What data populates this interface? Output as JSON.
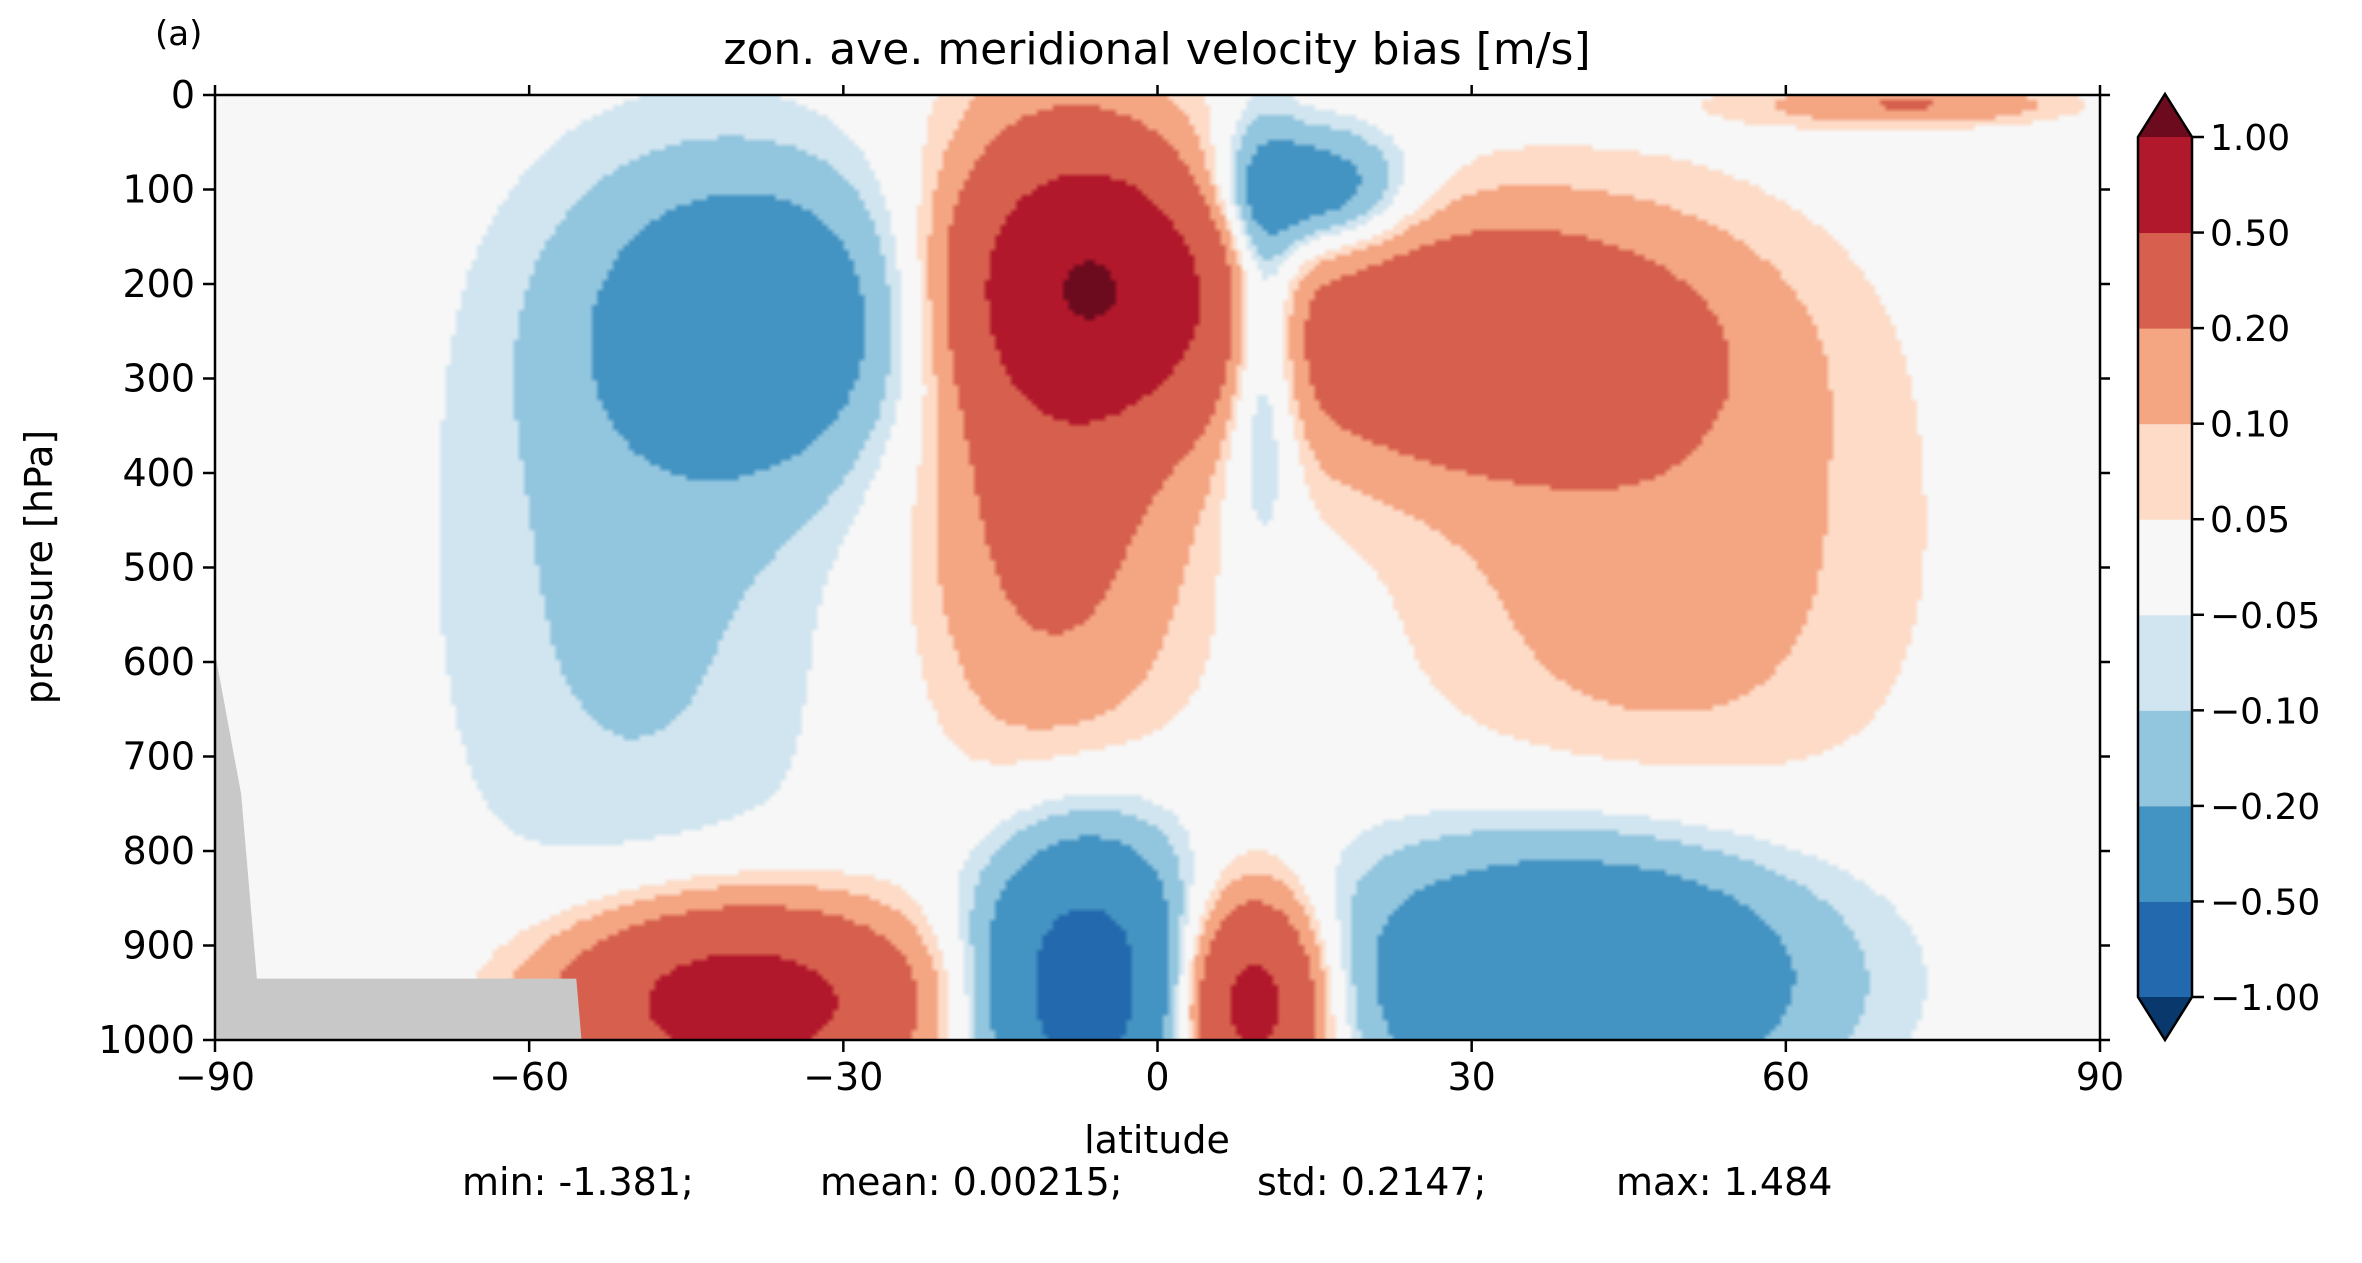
{
  "chart_data": {
    "type": "heatmap",
    "panel_label": "(a)",
    "title": "zon. ave. meridional velocity bias [m/s]",
    "xlabel": "latitude",
    "ylabel": "pressure [hPa]",
    "xlim": [
      -90,
      90
    ],
    "ylim": [
      1000,
      0
    ],
    "y_inverted": true,
    "x_ticks": [
      -90,
      -60,
      -30,
      0,
      30,
      60,
      90
    ],
    "x_tick_labels": [
      "−90",
      "−60",
      "−30",
      "0",
      "30",
      "60",
      "90"
    ],
    "y_ticks": [
      0,
      100,
      200,
      300,
      400,
      500,
      600,
      700,
      800,
      900,
      1000
    ],
    "y_tick_labels": [
      "0",
      "100",
      "200",
      "300",
      "400",
      "500",
      "600",
      "700",
      "800",
      "900",
      "1000"
    ],
    "grid": false,
    "colormap": "RdBu_r",
    "missing_color": "#c8c8c8",
    "colorbar": {
      "levels": [
        -1.0,
        -0.5,
        -0.2,
        -0.1,
        -0.05,
        0.05,
        0.1,
        0.2,
        0.5,
        1.0
      ],
      "tick_labels": [
        "−1.00",
        "−0.50",
        "−0.20",
        "−0.10",
        "−0.05",
        "0.05",
        "0.10",
        "0.20",
        "0.50",
        "1.00"
      ],
      "colors": [
        "#09386d",
        "#2369ad",
        "#4393c3",
        "#92c5de",
        "#d1e5f0",
        "#f7f7f7",
        "#fddbc7",
        "#f4a582",
        "#d6604d",
        "#b2182b",
        "#6c0a1e"
      ],
      "extend": "both"
    },
    "features": [
      {
        "name": "upper tropical jet positive core",
        "lat": -6,
        "p": 200,
        "value": 0.8
      },
      {
        "name": "upper tropical southern positive band",
        "lat": -10,
        "p": 350,
        "value": 0.3
      },
      {
        "name": "southern subtropical negative core",
        "lat": -38,
        "p": 240,
        "value": -0.35
      },
      {
        "name": "southern midlatitude negative column",
        "lat": -50,
        "p": 500,
        "value": -0.12
      },
      {
        "name": "upper tropical northern negative tongue",
        "lat": 10,
        "p": 250,
        "value": -0.3
      },
      {
        "name": "northern upper negative lobe",
        "lat": 15,
        "p": 100,
        "value": -0.35
      },
      {
        "name": "northern upper positive region",
        "lat": 30,
        "p": 260,
        "value": 0.4
      },
      {
        "name": "northern midlatitude positive plume",
        "lat": 48,
        "p": 470,
        "value": 0.15
      },
      {
        "name": "southern low-level positive core",
        "lat": -40,
        "p": 960,
        "value": 0.7
      },
      {
        "name": "tropical low-level negative core",
        "lat": -7,
        "p": 940,
        "value": -0.7
      },
      {
        "name": "northern tropical low-level positive core",
        "lat": 9,
        "p": 960,
        "value": 0.7
      },
      {
        "name": "northern midlatitude low-level negative region",
        "lat": 40,
        "p": 930,
        "value": -0.5
      },
      {
        "name": "polar upper positive streak",
        "lat": 72,
        "p": 10,
        "value": 0.2
      }
    ],
    "stats": {
      "min": "min: -1.381;",
      "mean": "mean: 0.00215;",
      "std": "std: 0.2147;",
      "max": "max: 1.484"
    }
  }
}
